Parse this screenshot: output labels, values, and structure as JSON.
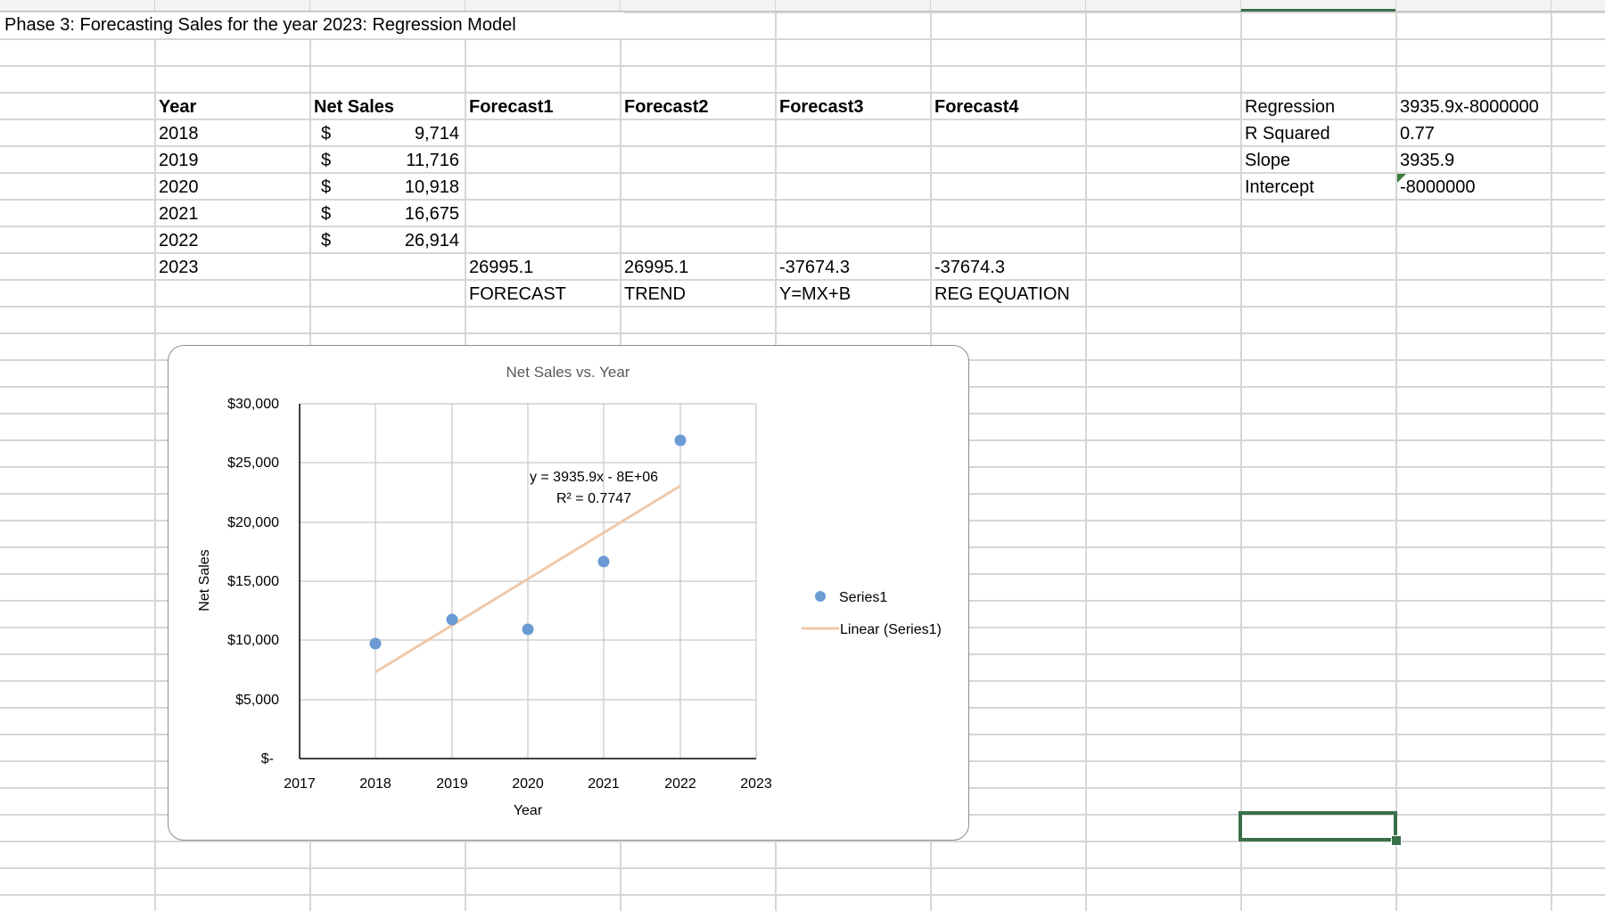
{
  "sheet": {
    "title": "Phase 3: Forecasting Sales for the year 2023: Regression Model",
    "table": {
      "headers": [
        "Year",
        "Net Sales",
        "Forecast1",
        "Forecast2",
        "Forecast3",
        "Forecast4"
      ],
      "rows": [
        {
          "year": "2018",
          "currency": "$",
          "net_sales": "9,714"
        },
        {
          "year": "2019",
          "currency": "$",
          "net_sales": "11,716"
        },
        {
          "year": "2020",
          "currency": "$",
          "net_sales": "10,918"
        },
        {
          "year": "2021",
          "currency": "$",
          "net_sales": "16,675"
        },
        {
          "year": "2022",
          "currency": "$",
          "net_sales": "26,914"
        },
        {
          "year": "2023",
          "currency": "",
          "net_sales": ""
        }
      ],
      "forecast_values": [
        "26995.1",
        "26995.1",
        "-37674.3",
        "-37674.3"
      ],
      "forecast_methods": [
        "FORECAST",
        "TREND",
        "Y=MX+B",
        "REG EQUATION"
      ]
    },
    "stats": [
      {
        "label": "Regression",
        "value": "3935.9x-8000000"
      },
      {
        "label": "R Squared",
        "value": "0.77"
      },
      {
        "label": "Slope",
        "value": "3935.9"
      },
      {
        "label": "Intercept",
        "value": "-8000000"
      }
    ],
    "colors": {
      "selection": "#3a7049",
      "gridline": "#d6d6d6",
      "series_marker": "#6b9bd2",
      "trendline": "#f0c8a8"
    }
  },
  "chart_data": {
    "type": "scatter",
    "title": "Net Sales vs. Year",
    "xlabel": "Year",
    "ylabel": "Net Sales",
    "x": [
      2018,
      2019,
      2020,
      2021,
      2022
    ],
    "series": [
      {
        "name": "Series1",
        "values": [
          9714,
          11716,
          10918,
          16675,
          26914
        ]
      }
    ],
    "trendline": {
      "name": "Linear (Series1)",
      "type": "linear",
      "equation": "y = 3935.9x - 8E+06",
      "r_squared": "R² = 0.7747",
      "x_range": [
        2018,
        2022
      ],
      "y_range": [
        7290,
        23033
      ]
    },
    "xlim": [
      2017,
      2023
    ],
    "ylim": [
      0,
      30000
    ],
    "x_ticks": [
      "2017",
      "2018",
      "2019",
      "2020",
      "2021",
      "2022",
      "2023"
    ],
    "y_ticks": [
      "$-",
      "$5,000",
      "$10,000",
      "$15,000",
      "$20,000",
      "$25,000",
      "$30,000"
    ],
    "grid": true,
    "legend": {
      "position": "right",
      "entries": [
        "Series1",
        "Linear (Series1)"
      ]
    }
  }
}
